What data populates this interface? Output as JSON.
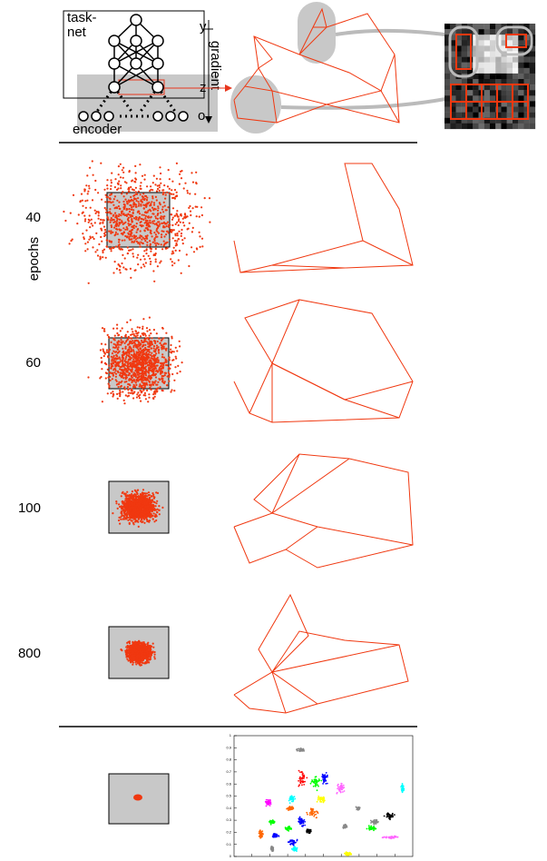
{
  "diagram": {
    "task_net_label": [
      "task-",
      "net"
    ],
    "y_label": "y",
    "gradient_label": "gradient",
    "z_label": "z",
    "o_label": "o",
    "encoder_label": "encoder"
  },
  "rows": {
    "axis_label": "epochs",
    "epochs": [
      "40",
      "60",
      "100",
      "800"
    ]
  },
  "inset_plot": {
    "ylim": [
      0,
      1
    ],
    "yticks": [
      0,
      0.1,
      0.2,
      0.3,
      0.4,
      0.5,
      0.6,
      0.7,
      0.8,
      0.9,
      1
    ]
  }
}
